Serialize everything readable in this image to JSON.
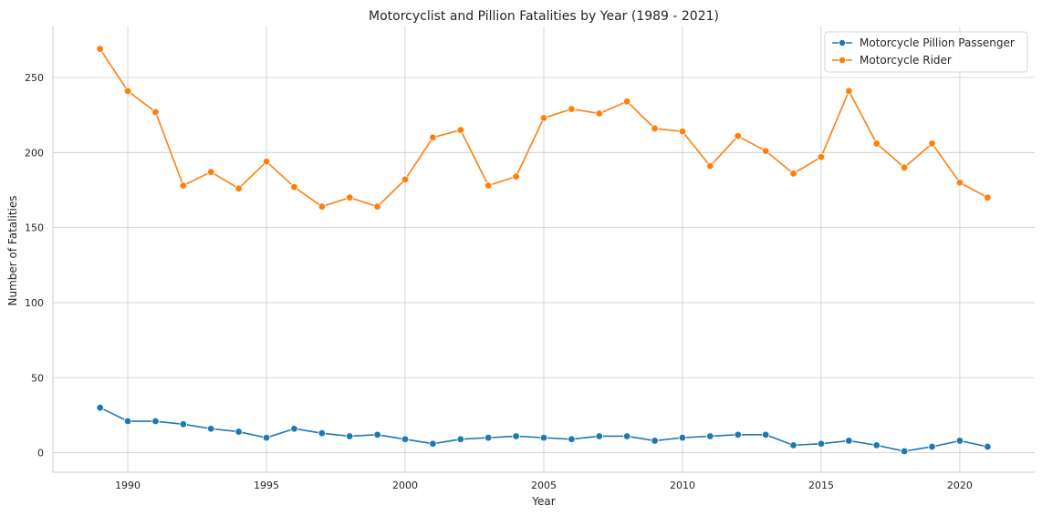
{
  "chart_data": {
    "type": "line",
    "title": "Motorcyclist and Pillion Fatalities by Year (1989 - 2021)",
    "xlabel": "Year",
    "ylabel": "Number of Fatalities",
    "xlim": [
      1987.3,
      2022.7
    ],
    "ylim": [
      -13,
      284
    ],
    "xticks": [
      1990,
      1995,
      2000,
      2005,
      2010,
      2015,
      2020
    ],
    "yticks": [
      0,
      50,
      100,
      150,
      200,
      250
    ],
    "grid": true,
    "legend_position": "top-right",
    "x": [
      1989,
      1990,
      1991,
      1992,
      1993,
      1994,
      1995,
      1996,
      1997,
      1998,
      1999,
      2000,
      2001,
      2002,
      2003,
      2004,
      2005,
      2006,
      2007,
      2008,
      2009,
      2010,
      2011,
      2012,
      2013,
      2014,
      2015,
      2016,
      2017,
      2018,
      2019,
      2020,
      2021
    ],
    "series": [
      {
        "name": "Motorcycle Pillion Passenger",
        "color": "#1f77b4",
        "values": [
          30,
          21,
          21,
          19,
          16,
          14,
          10,
          16,
          13,
          11,
          12,
          9,
          6,
          9,
          10,
          11,
          10,
          9,
          11,
          11,
          8,
          10,
          11,
          12,
          12,
          5,
          6,
          8,
          5,
          1,
          4,
          8,
          4
        ]
      },
      {
        "name": "Motorcycle Rider",
        "color": "#ff7f0e",
        "values": [
          269,
          241,
          227,
          178,
          187,
          176,
          194,
          177,
          164,
          170,
          164,
          182,
          210,
          215,
          178,
          184,
          223,
          229,
          226,
          234,
          216,
          214,
          191,
          211,
          201,
          186,
          197,
          241,
          206,
          190,
          206,
          180,
          170
        ]
      }
    ]
  }
}
